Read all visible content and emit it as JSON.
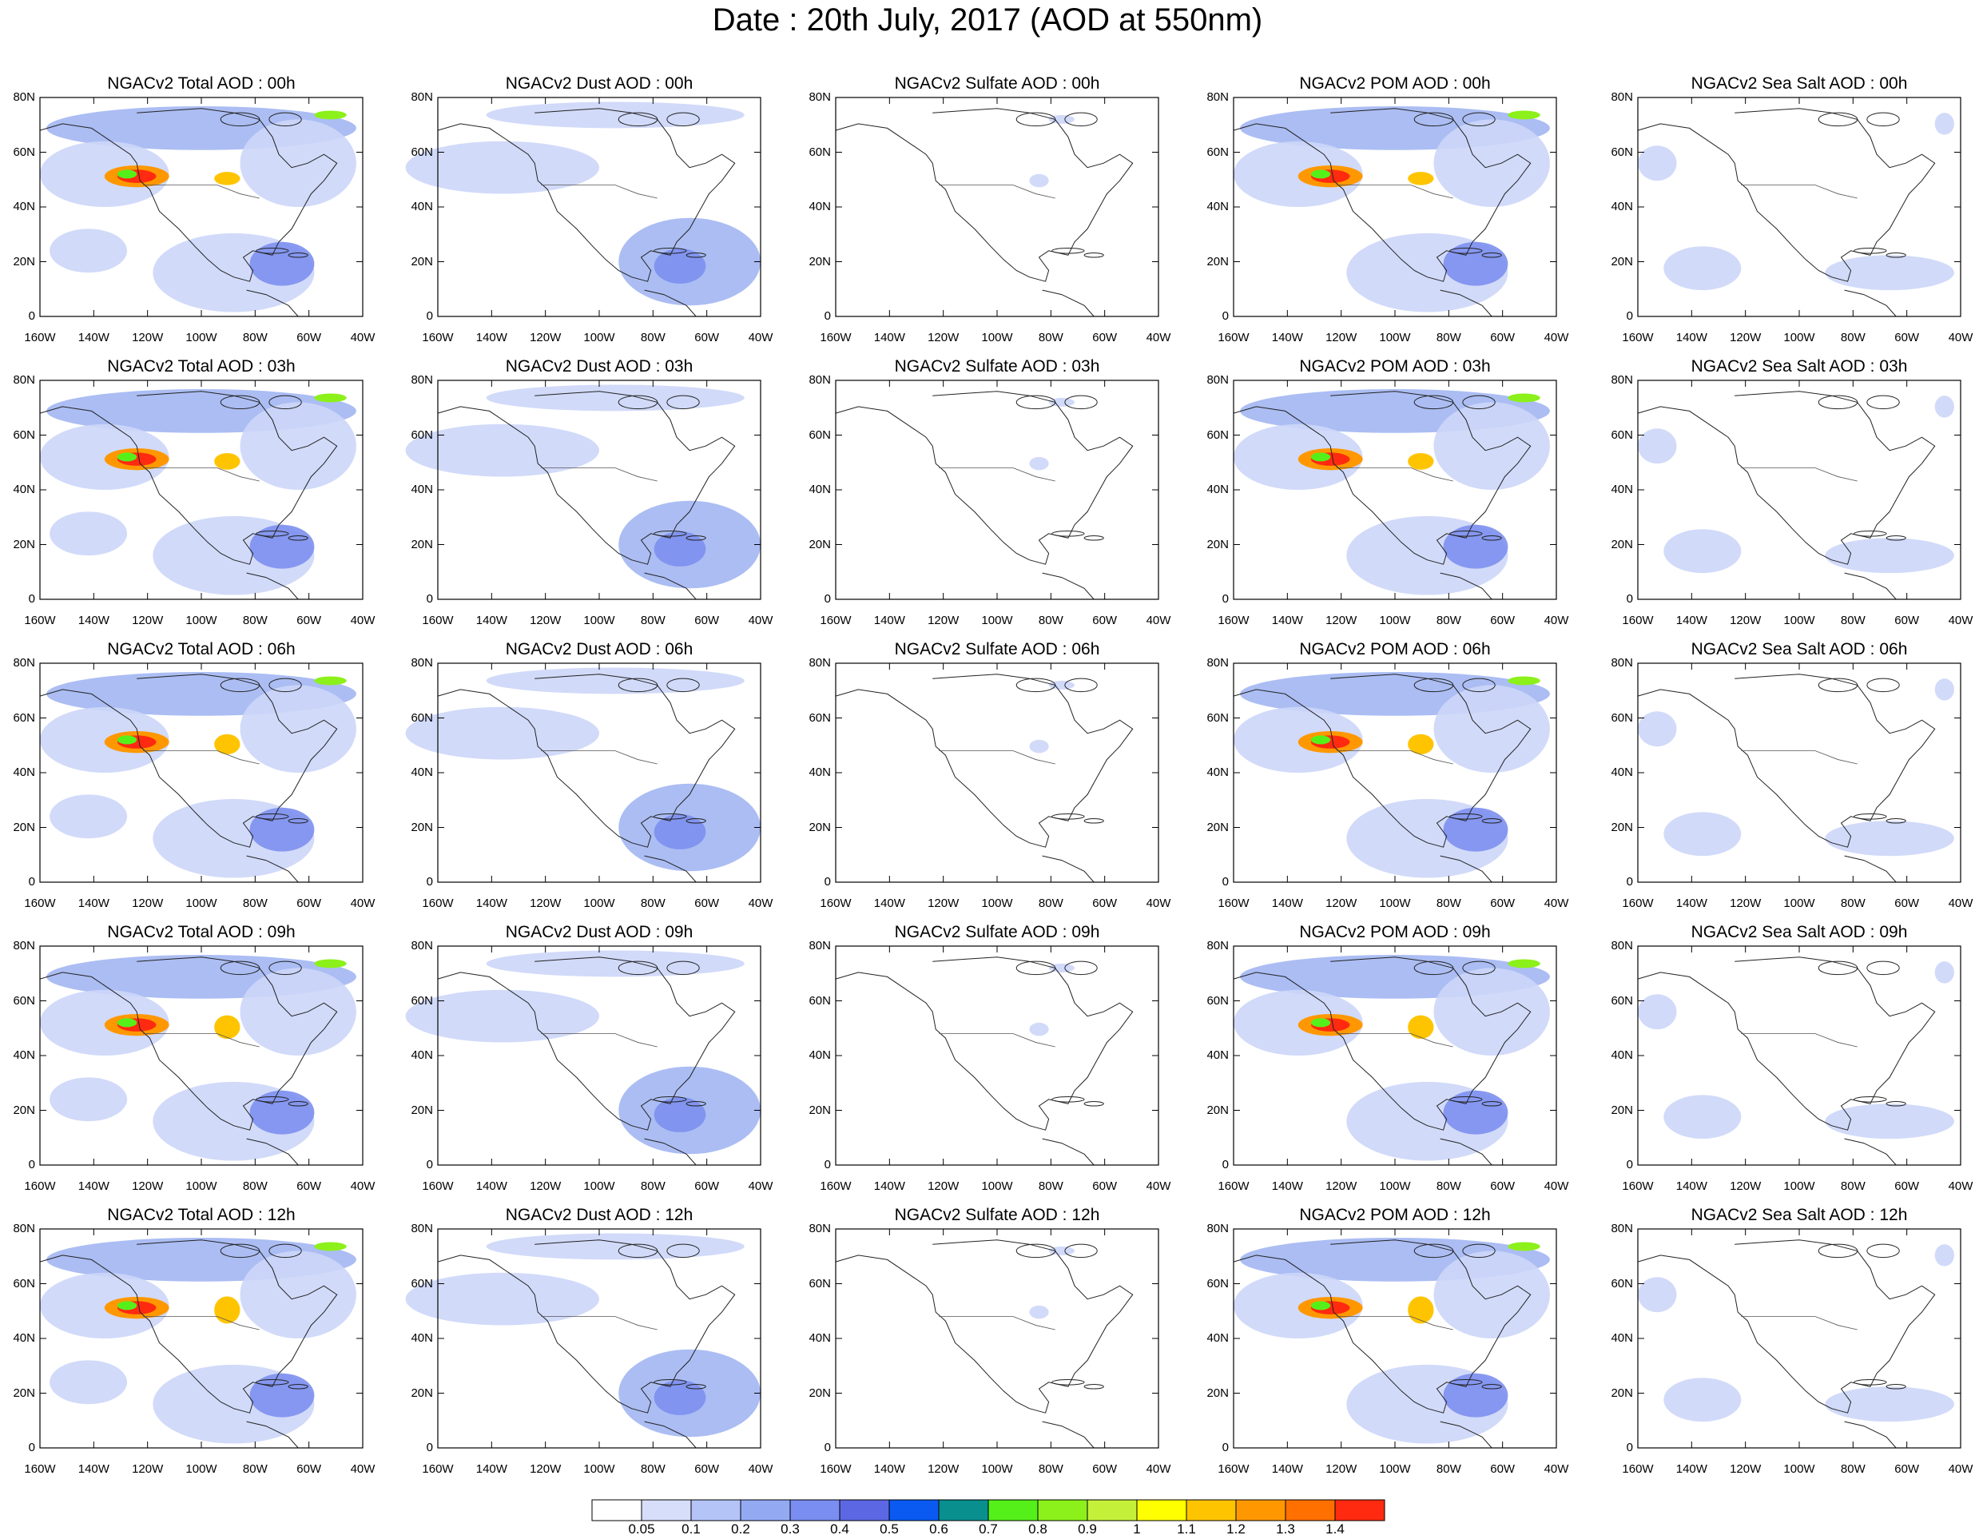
{
  "title": "Date : 20th July, 2017 (AOD at 550nm)",
  "lat_labels": [
    "80N",
    "60N",
    "40N",
    "20N",
    "0"
  ],
  "lon_labels": [
    "160W",
    "140W",
    "120W",
    "100W",
    "80W",
    "60W",
    "40W"
  ],
  "colorbar": {
    "labels": [
      "0.05",
      "0.1",
      "0.2",
      "0.3",
      "0.4",
      "0.5",
      "0.6",
      "0.7",
      "0.8",
      "0.9",
      "1",
      "1.1",
      "1.2",
      "1.3",
      "1.4"
    ],
    "colors": [
      "#ffffff",
      "#d6defa",
      "#b4c4f7",
      "#93aaf3",
      "#7a8df0",
      "#5c68e3",
      "#0a5af2",
      "#0a8f8f",
      "#55f01a",
      "#8cf01a",
      "#c5f03a",
      "#ffff00",
      "#ffc400",
      "#ff9800",
      "#ff7000",
      "#ff2a10"
    ]
  },
  "columns": [
    {
      "key": "total",
      "color": "#8ea4ee"
    },
    {
      "key": "dust",
      "color": "#b9c6f4"
    },
    {
      "key": "sulfate",
      "color": "#dfe5fb"
    },
    {
      "key": "pom",
      "color": "#9fb2f1"
    },
    {
      "key": "seasalt",
      "color": "#cdd7f8"
    }
  ],
  "panels": [
    [
      "NGACv2 Total AOD : 00h",
      "NGACv2 Dust AOD : 00h",
      "NGACv2 Sulfate AOD : 00h",
      "NGACv2 POM AOD : 00h",
      "NGACv2 Sea Salt AOD : 00h"
    ],
    [
      "NGACv2 Total AOD : 03h",
      "NGACv2 Dust AOD : 03h",
      "NGACv2 Sulfate AOD : 03h",
      "NGACv2 POM AOD : 03h",
      "NGACv2 Sea Salt AOD : 03h"
    ],
    [
      "NGACv2 Total AOD : 06h",
      "NGACv2 Dust AOD : 06h",
      "NGACv2 Sulfate AOD : 06h",
      "NGACv2 POM AOD : 06h",
      "NGACv2 Sea Salt AOD : 06h"
    ],
    [
      "NGACv2 Total AOD : 09h",
      "NGACv2 Dust AOD : 09h",
      "NGACv2 Sulfate AOD : 09h",
      "NGACv2 POM AOD : 09h",
      "NGACv2 Sea Salt  AOD : 09h"
    ],
    [
      "NGACv2 Total AOD  : 12h",
      "NGACv2 Dust AOD : 12h",
      "NGACv2 Sulfate AOD : 12h",
      "NGACv2 POM  AOD : 12h",
      "NGACv2 Sea Salt  AOD : 12h"
    ]
  ]
}
